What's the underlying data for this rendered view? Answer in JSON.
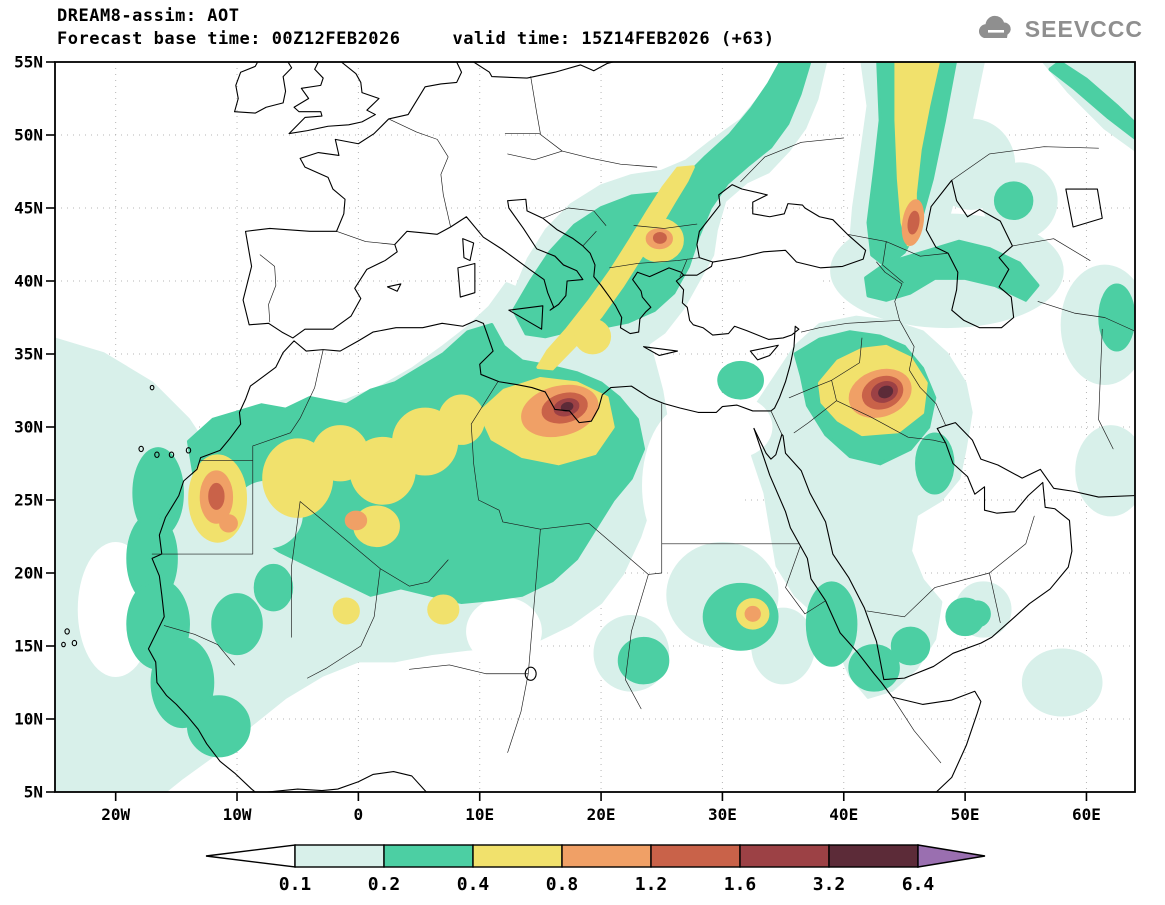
{
  "header": {
    "title": "DREAM8-assim: AOT",
    "base_time_label": "Forecast base time: 00Z12FEB2026",
    "valid_time_label": "valid time: 15Z14FEB2026 (+63)",
    "logo_text": "SEEVCCC"
  },
  "axes": {
    "lat_ticks": [
      "55N",
      "50N",
      "45N",
      "40N",
      "35N",
      "30N",
      "25N",
      "20N",
      "15N",
      "10N",
      "5N"
    ],
    "lon_ticks": [
      "20W",
      "10W",
      "0",
      "10E",
      "20E",
      "30E",
      "40E",
      "50E",
      "60E"
    ]
  },
  "palette": {
    "white": "#ffffff",
    "l01": "#d8f0ea",
    "l02": "#4ccfa3",
    "l04": "#f1e16c",
    "l08": "#f0a066",
    "l12": "#c96249",
    "l16": "#9c4145",
    "l32": "#5c2b38",
    "l64": "#9a6fb0",
    "coast": "#000000",
    "grid": "#b5b5b5",
    "logo_gray": "#8f8f8f"
  },
  "colorbar": {
    "levels": [
      "0.1",
      "0.2",
      "0.4",
      "0.8",
      "1.2",
      "1.6",
      "3.2",
      "6.4"
    ],
    "segments": [
      "l01",
      "l02",
      "l04",
      "l08",
      "l12",
      "l16",
      "l32"
    ],
    "left_arrow": "white",
    "right_arrow": "l64"
  },
  "chart_data": {
    "type": "heatmap",
    "title": "DREAM8-assim: AOT",
    "subtitle": "Forecast base time: 00Z12FEB2026  valid time: 15Z14FEB2026 (+63)",
    "quantity": "Aerosol Optical Thickness (AOT), filled contours",
    "x_axis": {
      "label": "longitude",
      "ticks": [
        "20W",
        "10W",
        "0",
        "10E",
        "20E",
        "30E",
        "40E",
        "50E",
        "60E"
      ],
      "range_deg": [
        -25,
        64
      ]
    },
    "y_axis": {
      "label": "latitude",
      "ticks": [
        "55N",
        "50N",
        "45N",
        "40N",
        "35N",
        "30N",
        "25N",
        "20N",
        "15N",
        "10N",
        "5N"
      ],
      "range_deg": [
        5,
        55
      ]
    },
    "contour_levels": [
      0.1,
      0.2,
      0.4,
      0.8,
      1.2,
      1.6,
      3.2,
      6.4
    ],
    "level_colors": [
      "#ffffff",
      "#d8f0ea",
      "#4ccfa3",
      "#f1e16c",
      "#f0a066",
      "#c96249",
      "#9c4145",
      "#5c2b38",
      "#9a6fb0"
    ],
    "legend_position": "bottom",
    "grid": "dotted graticule every 5 deg lat / 10 deg lon",
    "maxima": [
      {
        "lon": 17,
        "lat": 31.5,
        "approx_value": "> 1.6",
        "region": "central Libya dust plume"
      },
      {
        "lon": 43,
        "lat": 32,
        "approx_value": "> 1.6",
        "region": "Iraq dust plume"
      },
      {
        "lon": -12,
        "lat": 25,
        "approx_value": "> 0.8",
        "region": "Western Sahara / Morocco"
      },
      {
        "lon": 25,
        "lat": 43,
        "approx_value": "> 1.2",
        "region": "Bulgaria / Balkans streak"
      },
      {
        "lon": 46,
        "lat": 44,
        "approx_value": "> 1.2",
        "region": "north of Caucasus band"
      },
      {
        "lon": 33,
        "lat": 17.5,
        "approx_value": "> 0.8",
        "region": "Sudan"
      },
      {
        "lon": 0,
        "lat": 23.5,
        "approx_value": "> 0.8",
        "region": "Algeria/Mali"
      }
    ]
  }
}
